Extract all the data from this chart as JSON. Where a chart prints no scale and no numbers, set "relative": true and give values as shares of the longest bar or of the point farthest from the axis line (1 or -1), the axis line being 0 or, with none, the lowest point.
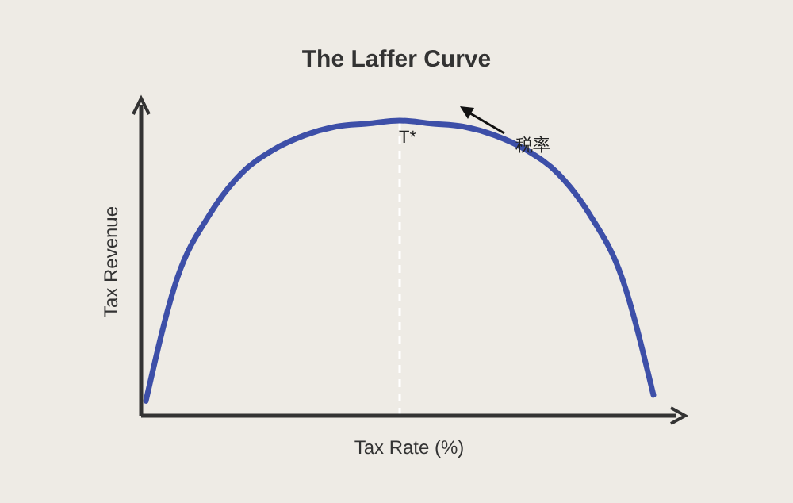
{
  "chart_data": {
    "type": "line",
    "title": "The Laffer Curve",
    "xlabel": "Tax Rate (%)",
    "ylabel": "Tax Revenue",
    "relative": true,
    "categories": [
      null,
      null,
      null,
      null,
      null,
      null,
      null,
      null,
      null,
      null,
      null,
      null,
      null,
      null,
      null,
      null,
      null
    ],
    "series": [
      {
        "color": "#3d4fa8",
        "values": [
          0.05,
          0.47,
          0.68,
          0.82,
          0.9,
          0.95,
          0.98,
          0.99,
          1.0,
          0.99,
          0.98,
          0.95,
          0.9,
          0.82,
          0.68,
          0.47,
          0.07
        ]
      }
    ],
    "annotations": [
      "T*",
      "税率"
    ]
  }
}
